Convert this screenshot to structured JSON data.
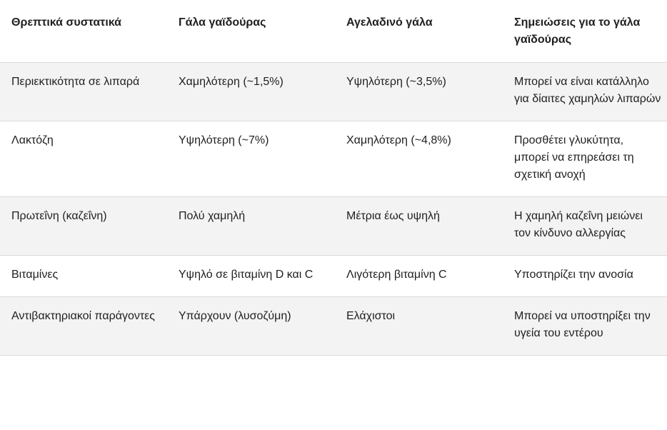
{
  "table": {
    "headers": [
      "Θρεπτικά συστατικά",
      "Γάλα γαϊδούρας",
      "Αγελαδινό γάλα",
      "Σημειώσεις για το γάλα γαϊδούρας"
    ],
    "rows": [
      [
        "Περιεκτικότητα σε λιπαρά",
        "Χαμηλότερη (~1,5%)",
        "Υψηλότερη (~3,5%)",
        "Μπορεί να είναι κατάλληλο για δίαιτες χαμηλών λιπαρών"
      ],
      [
        "Λακτόζη",
        "Υψηλότερη (~7%)",
        "Χαμηλότερη (~4,8%)",
        "Προσθέτει γλυκύτητα, μπορεί να επηρεάσει τη σχετική ανοχή"
      ],
      [
        "Πρωτεΐνη (καζεΐνη)",
        "Πολύ χαμηλή",
        "Μέτρια έως υψηλή",
        "Η χαμηλή καζεΐνη μειώνει τον κίνδυνο αλλεργίας"
      ],
      [
        "Βιταμίνες",
        "Υψηλό σε βιταμίνη D και C",
        "Λιγότερη βιταμίνη C",
        "Υποστηρίζει την ανοσία"
      ],
      [
        "Αντιβακτηριακοί παράγοντες",
        "Υπάρχουν (λυσοζύμη)",
        "Ελάχιστοι",
        "Μπορεί να υποστηρίξει την υγεία του εντέρου"
      ]
    ]
  }
}
